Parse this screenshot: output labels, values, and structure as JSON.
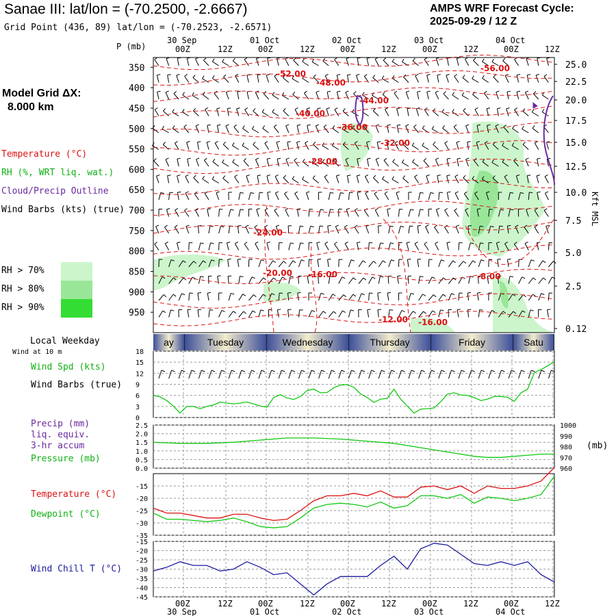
{
  "header": {
    "title": "Sanae III:  lat/lon = (-70.2500, -2.6667)",
    "subtitle": "Grid Point (436, 89) lat/lon = (-70.2523, -2.6571)",
    "cycle_line1": "AMPS WRF Forecast Cycle:",
    "cycle_line2": "2025-09-29 / 12  Z"
  },
  "model_grid": {
    "line1": "Model Grid ΔX:",
    "line2": "8.000 km"
  },
  "legend": {
    "temperature": "Temperature (°C)",
    "rh": "RH (%, WRT liq. wat.)",
    "cloud": "Cloud/Precip Outline",
    "wind": "Wind Barbs (kts) (true)",
    "rh70": "RH > 70%",
    "rh80": "RH > 80%",
    "rh90": "RH > 90%",
    "p_unit": "P (mb)",
    "kft": "Kft MSL"
  },
  "colors": {
    "rh70": "#ccf5cc",
    "rh80": "#99e699",
    "rh90": "#33dd33",
    "temp": "#dd1111",
    "cloud": "#6a2aa0",
    "dew": "#11c811",
    "chill": "#1a1aa0",
    "day_dark": "#3d4f9a",
    "day_light": "#f3eccc"
  },
  "time_axis": {
    "top_dates": [
      "30 Sep",
      "01 Oct",
      "02 Oct",
      "03 Oct",
      "04 Oct"
    ],
    "bottom_dates": [
      "30 Sep",
      "01 Oct",
      "02 Oct",
      "03 Oct",
      "04 Oct"
    ],
    "hour_ticks": [
      "00Z",
      "12Z",
      "00Z",
      "12Z",
      "00Z",
      "12Z",
      "00Z",
      "12Z",
      "00Z",
      "12Z"
    ]
  },
  "local_weekday": {
    "label": "Local Weekday",
    "sublabel": "Wind at 10 m",
    "days": [
      "ay",
      "Tuesday",
      "Wednesday",
      "Thursday",
      "Friday",
      "Satu"
    ]
  },
  "panels": {
    "wind": {
      "label1": "Wind Spd (kts)",
      "label2": "Wind Barbs (true)"
    },
    "precip": {
      "label1": "Precip (mm)",
      "label2": "liq. equiv.",
      "label3": "3-hr accum",
      "label4": "Pressure (mb)",
      "unit": "(mb)"
    },
    "temp": {
      "label1": "Temperature (°C)",
      "label2": "Dewpoint (°C)"
    },
    "chill": {
      "label1": "Wind Chill T (°C)"
    }
  },
  "chart_data": [
    {
      "type": "line",
      "title": "",
      "x_label": "forecast hour",
      "pressure_levels_mb": [
        350,
        400,
        450,
        500,
        550,
        600,
        650,
        700,
        750,
        800,
        850,
        900,
        950
      ],
      "height_kft": [
        "25.0",
        "22.5",
        "20.0",
        "17.5",
        "15.0",
        "12.5",
        "10.0",
        "7.5",
        "5.0",
        "2.5",
        "0.12"
      ],
      "temperature_contour_labels": [
        "-52.00",
        "-48.00",
        "-56.00",
        "-44.00",
        "-40.00",
        "-36.00",
        "-32.00",
        "-28.00",
        "-24.00",
        "-20.00",
        "-16.00",
        "-8.00",
        "-12.00",
        "-16.00"
      ]
    },
    {
      "type": "line",
      "title": "",
      "series": [
        {
          "name": "Wind Spd (kts)",
          "x_hours": [
            0,
            6,
            12,
            18,
            24,
            30,
            36,
            42,
            48,
            54,
            60,
            66,
            72,
            78,
            84,
            90,
            96,
            102,
            108,
            114,
            120,
            126,
            132,
            138,
            144,
            150,
            156,
            162,
            168,
            174,
            180,
            186,
            192,
            198,
            204,
            210,
            216,
            222,
            228,
            234,
            240,
            246,
            252,
            258,
            264,
            270,
            276,
            282,
            288,
            294,
            300,
            306,
            312,
            318,
            324,
            330,
            336,
            342,
            348,
            354,
            360
          ],
          "values": [
            6,
            5.6,
            4.6,
            3.1,
            1.2,
            3,
            3,
            2.4,
            3,
            3.4,
            4.2,
            3.9,
            3.7,
            3.9,
            4.2,
            3.7,
            3.1,
            2.8,
            5.4,
            6.2,
            5.3,
            4.9,
            5.7,
            7.3,
            7.7,
            6.7,
            6.8,
            8.1,
            8.8,
            8.9,
            8.2,
            6.4,
            5.4,
            4.1,
            5,
            5.2,
            7.7,
            5,
            3.1,
            1.2,
            2.3,
            2.4,
            2.6,
            4.3,
            6.3,
            6.7,
            6.1,
            6,
            5.4,
            4.6,
            5,
            5.7,
            5.7,
            5.5,
            4.4,
            6.7,
            7.7,
            12.2,
            13,
            14,
            15.2
          ]
        }
      ],
      "ylim": [
        0,
        18
      ],
      "yticks": [
        "18",
        "15",
        "12",
        "9",
        "6",
        "3",
        "0"
      ]
    },
    {
      "type": "line",
      "title": "",
      "series": [
        {
          "name": "Pressure (mb)",
          "x_hours": [
            0,
            24,
            48,
            72,
            96,
            120,
            144,
            168,
            192,
            216,
            240,
            264,
            288,
            300,
            312,
            324,
            336,
            348,
            360
          ],
          "values": [
            984,
            983,
            983,
            984,
            986,
            988,
            988,
            987,
            985,
            983,
            979,
            975,
            971,
            970,
            970,
            971,
            972,
            973,
            973
          ]
        }
      ],
      "ylim_left": [
        0.0,
        2.5
      ],
      "yticks_left": [
        "2.5",
        "2.0",
        "1.5",
        "1.0",
        "0.5",
        "0.0"
      ],
      "ylim_right": [
        960,
        1000
      ],
      "yticks_right": [
        "1000",
        "990",
        "980",
        "970",
        "960"
      ]
    },
    {
      "type": "line",
      "title": "",
      "series": [
        {
          "name": "Temperature (°C)",
          "x_hours": [
            0,
            12,
            24,
            36,
            48,
            60,
            72,
            84,
            96,
            108,
            120,
            132,
            144,
            156,
            168,
            180,
            192,
            204,
            216,
            228,
            240,
            252,
            264,
            276,
            288,
            300,
            312,
            324,
            336,
            348,
            360
          ],
          "values": [
            -24,
            -26,
            -26,
            -27,
            -28,
            -28,
            -26.5,
            -26.5,
            -28,
            -29,
            -28.5,
            -25,
            -21,
            -19,
            -19,
            -18,
            -19,
            -17,
            -19.5,
            -19.5,
            -15.5,
            -15,
            -16.5,
            -15,
            -18,
            -15,
            -16,
            -16,
            -15,
            -13,
            -7.5
          ]
        },
        {
          "name": "Dewpoint (°C)",
          "x_hours": [
            0,
            12,
            24,
            36,
            48,
            60,
            72,
            84,
            96,
            108,
            120,
            132,
            144,
            156,
            168,
            180,
            192,
            204,
            216,
            228,
            240,
            252,
            264,
            276,
            288,
            300,
            312,
            324,
            336,
            348,
            360
          ],
          "values": [
            -26,
            -28.5,
            -28.5,
            -29,
            -29.5,
            -29,
            -28,
            -29.5,
            -31.5,
            -32,
            -31.5,
            -28,
            -24,
            -22.5,
            -22,
            -22.5,
            -23.5,
            -21.5,
            -24,
            -23,
            -19,
            -19,
            -20,
            -18.5,
            -22,
            -19.5,
            -20,
            -21,
            -20,
            -18.5,
            -11
          ]
        }
      ],
      "ylim": [
        -35,
        -10
      ],
      "yticks": [
        "-15",
        "-20",
        "-25",
        "-30",
        "-35"
      ]
    },
    {
      "type": "line",
      "title": "",
      "series": [
        {
          "name": "Wind Chill T (°C)",
          "x_hours": [
            0,
            12,
            24,
            36,
            48,
            60,
            72,
            84,
            96,
            108,
            120,
            132,
            144,
            156,
            168,
            180,
            192,
            204,
            216,
            228,
            240,
            252,
            264,
            276,
            288,
            300,
            312,
            324,
            336,
            348,
            360
          ],
          "values": [
            -31,
            -29,
            -26,
            -28,
            -28,
            -31,
            -30,
            -26,
            -29,
            -33,
            -32,
            -38,
            -44,
            -38,
            -34,
            -34,
            -34,
            -28,
            -23,
            -30,
            -19,
            -16,
            -17,
            -22,
            -27,
            -28,
            -26,
            -28,
            -26,
            -33,
            -37
          ]
        }
      ],
      "ylim": [
        -45,
        -15
      ],
      "yticks": [
        "-15",
        "-20",
        "-25",
        "-30",
        "-35",
        "-40",
        "-45"
      ]
    }
  ]
}
